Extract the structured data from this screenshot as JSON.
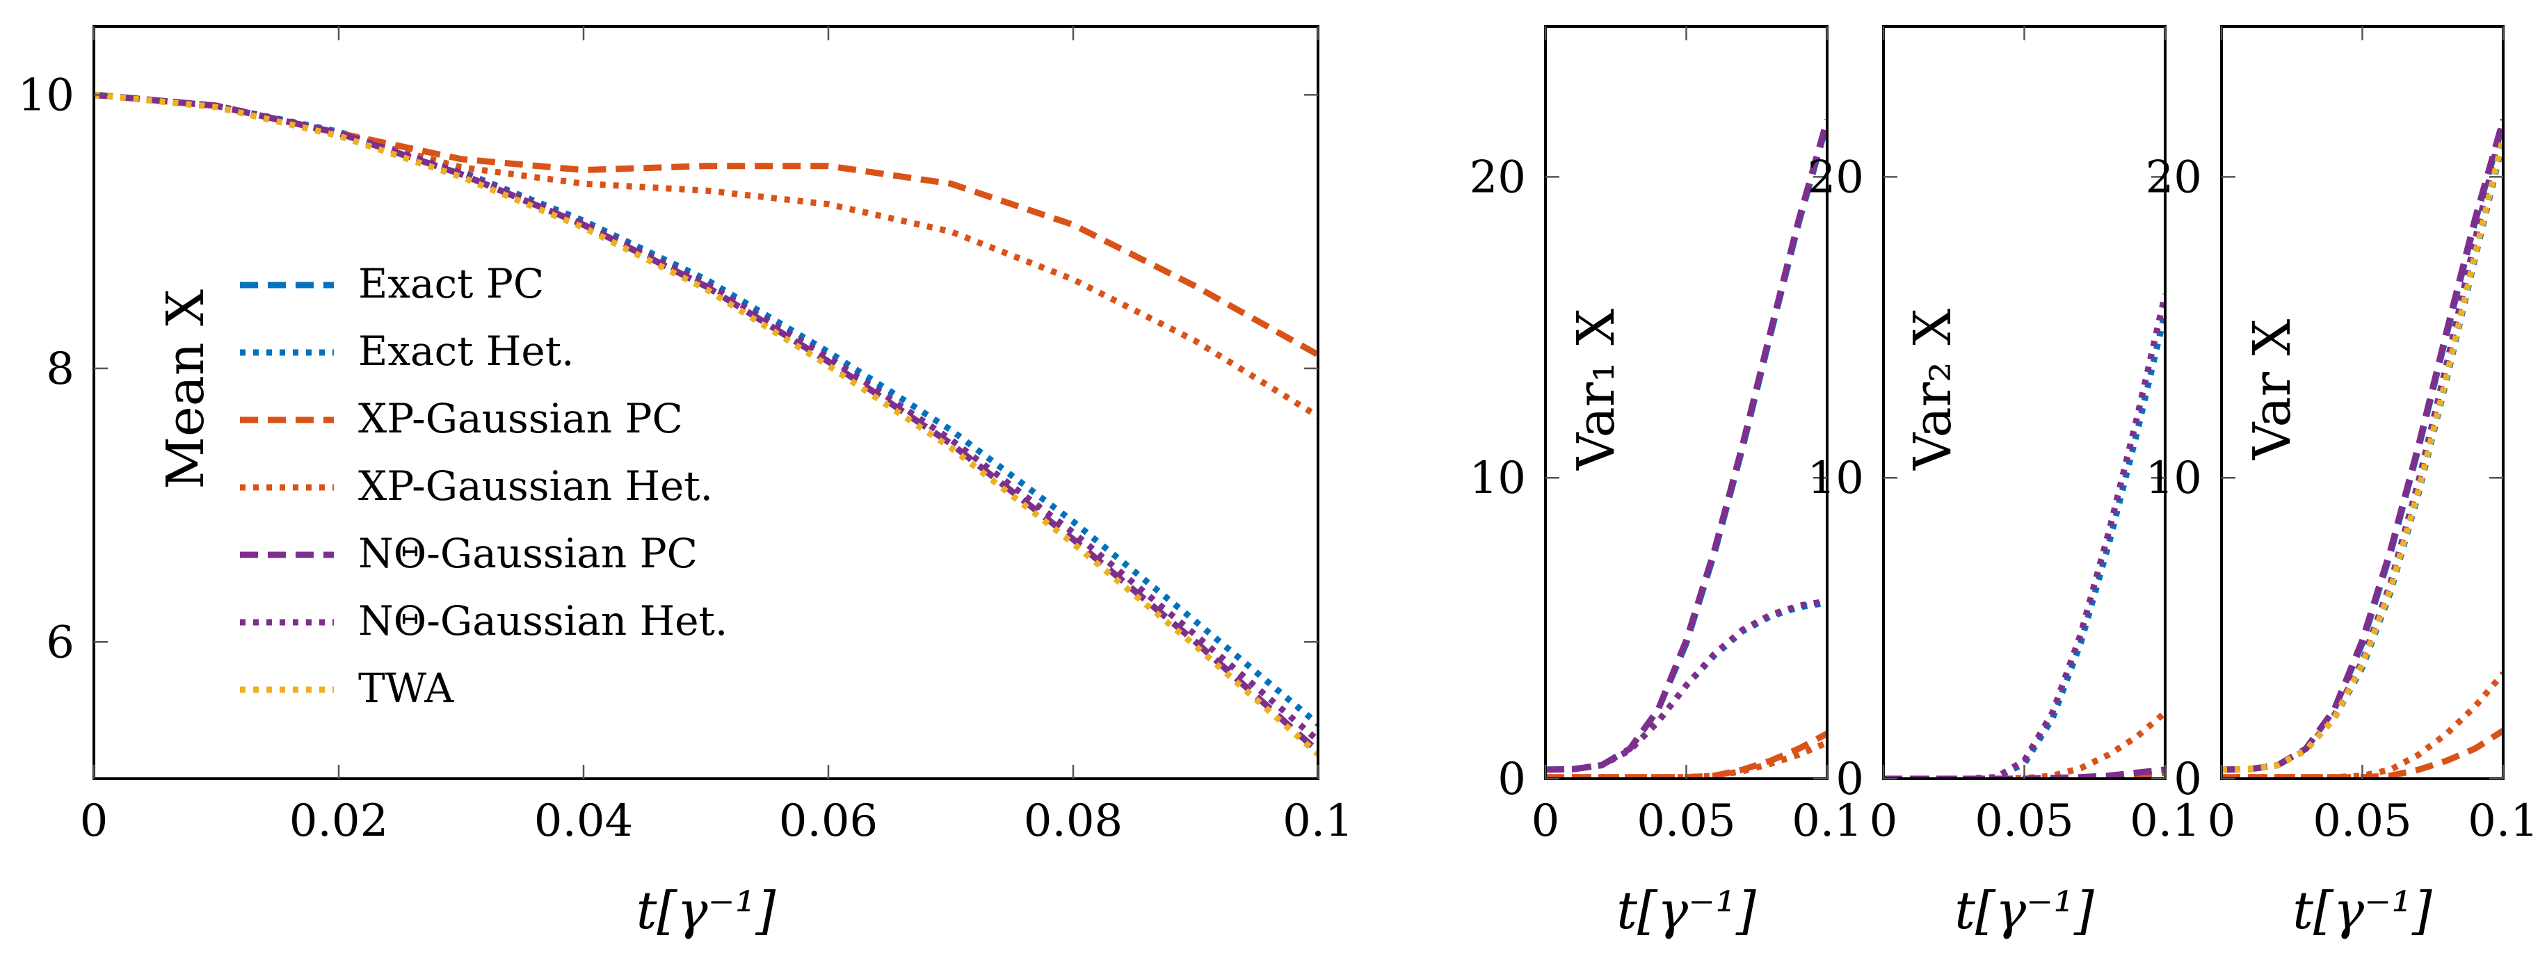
{
  "colors": {
    "exact": "#0072BD",
    "xp": "#D95319",
    "ntheta": "#7E2F8E",
    "twa": "#EDB120"
  },
  "chart_data": [
    {
      "type": "line",
      "panel": "mean",
      "ylabel": "Mean X",
      "xlabel": "t[γ⁻¹]",
      "xlim": [
        0,
        0.1
      ],
      "ylim": [
        5,
        10.5
      ],
      "xticks": [
        "0",
        "0.02",
        "0.04",
        "0.06",
        "0.08",
        "0.1"
      ],
      "xtick_values": [
        0,
        0.02,
        0.04,
        0.06,
        0.08,
        0.1
      ],
      "yticks": [
        "6",
        "8",
        "10"
      ],
      "ytick_values": [
        6,
        8,
        10
      ],
      "grid": false,
      "legend_position": "center-left",
      "legend": [
        {
          "label": "Exact PC",
          "color_key": "exact",
          "dash": "dashed"
        },
        {
          "label": "Exact Het.",
          "color_key": "exact",
          "dash": "dotted"
        },
        {
          "label": "XP-Gaussian PC",
          "color_key": "xp",
          "dash": "dashed"
        },
        {
          "label": "XP-Gaussian Het.",
          "color_key": "xp",
          "dash": "dotted"
        },
        {
          "label": "NΘ-Gaussian PC",
          "color_key": "ntheta",
          "dash": "dashed"
        },
        {
          "label": "NΘ-Gaussian Het.",
          "color_key": "ntheta",
          "dash": "dotted"
        },
        {
          "label": "TWA",
          "color_key": "twa",
          "dash": "dotted"
        }
      ],
      "x": [
        0,
        0.01,
        0.02,
        0.03,
        0.04,
        0.05,
        0.06,
        0.07,
        0.08,
        0.09,
        0.1
      ],
      "series": [
        {
          "name": "Exact PC",
          "color_key": "exact",
          "dash": "dashed",
          "values": [
            10,
            9.92,
            9.72,
            9.42,
            9.05,
            8.6,
            8.05,
            7.45,
            6.75,
            6.0,
            5.2
          ]
        },
        {
          "name": "Exact Het.",
          "color_key": "exact",
          "dash": "dotted",
          "values": [
            10,
            9.92,
            9.73,
            9.44,
            9.08,
            8.65,
            8.12,
            7.55,
            6.88,
            6.15,
            5.4
          ]
        },
        {
          "name": "XP-Gaussian PC",
          "color_key": "xp",
          "dash": "dashed",
          "values": [
            10,
            9.92,
            9.72,
            9.53,
            9.45,
            9.48,
            9.48,
            9.35,
            9.05,
            8.6,
            8.1
          ]
        },
        {
          "name": "XP-Gaussian Het.",
          "color_key": "xp",
          "dash": "dotted",
          "values": [
            10,
            9.92,
            9.71,
            9.47,
            9.35,
            9.3,
            9.2,
            9.0,
            8.65,
            8.2,
            7.65
          ]
        },
        {
          "name": "NΘ-Gaussian PC",
          "color_key": "ntheta",
          "dash": "dashed",
          "values": [
            10,
            9.92,
            9.72,
            9.42,
            9.05,
            8.6,
            8.05,
            7.45,
            6.75,
            6.0,
            5.2
          ]
        },
        {
          "name": "NΘ-Gaussian Het.",
          "color_key": "ntheta",
          "dash": "dotted",
          "values": [
            10,
            9.92,
            9.72,
            9.43,
            9.06,
            8.62,
            8.08,
            7.48,
            6.8,
            6.05,
            5.28
          ]
        },
        {
          "name": "TWA",
          "color_key": "twa",
          "dash": "dotted",
          "values": [
            10,
            9.91,
            9.7,
            9.4,
            9.03,
            8.58,
            8.02,
            7.42,
            6.72,
            5.97,
            5.18
          ]
        }
      ]
    },
    {
      "type": "line",
      "panel": "var1",
      "ylabel": "Var₁ X",
      "xlabel": "t[γ⁻¹]",
      "xlim": [
        0,
        0.1
      ],
      "ylim": [
        0,
        25
      ],
      "xticks": [
        "0",
        "0.05",
        "0.1"
      ],
      "xtick_values": [
        0,
        0.05,
        0.1
      ],
      "yticks": [
        "0",
        "10",
        "20"
      ],
      "ytick_values": [
        0,
        10,
        20
      ],
      "x": [
        0,
        0.01,
        0.02,
        0.03,
        0.04,
        0.05,
        0.06,
        0.07,
        0.08,
        0.09,
        0.1
      ],
      "series": [
        {
          "name": "Exact PC",
          "color_key": "exact",
          "dash": "dashed",
          "values": [
            0.3,
            0.32,
            0.45,
            1.0,
            2.3,
            4.5,
            7.5,
            11.0,
            14.8,
            18.5,
            21.8
          ]
        },
        {
          "name": "Exact Het.",
          "color_key": "exact",
          "dash": "dotted",
          "values": [
            0.3,
            0.32,
            0.45,
            0.95,
            1.9,
            3.1,
            4.1,
            4.9,
            5.4,
            5.7,
            5.85
          ]
        },
        {
          "name": "XP-Gaussian PC",
          "color_key": "xp",
          "dash": "dashed",
          "values": [
            0.05,
            0.05,
            0.05,
            0.05,
            0.05,
            0.05,
            0.1,
            0.3,
            0.6,
            1.0,
            1.5
          ]
        },
        {
          "name": "XP-Gaussian Het.",
          "color_key": "xp",
          "dash": "dotted",
          "values": [
            0.05,
            0.05,
            0.05,
            0.05,
            0.05,
            0.05,
            0.1,
            0.25,
            0.5,
            0.8,
            1.2
          ]
        },
        {
          "name": "NΘ-Gaussian PC",
          "color_key": "ntheta",
          "dash": "dashed",
          "values": [
            0.3,
            0.32,
            0.45,
            1.0,
            2.3,
            4.6,
            7.6,
            11.1,
            14.9,
            18.6,
            21.9
          ]
        },
        {
          "name": "NΘ-Gaussian Het.",
          "color_key": "ntheta",
          "dash": "dotted",
          "values": [
            0.3,
            0.32,
            0.45,
            0.95,
            1.9,
            3.1,
            4.15,
            4.95,
            5.45,
            5.75,
            5.9
          ]
        }
      ]
    },
    {
      "type": "line",
      "panel": "var2",
      "ylabel": "Var₂ X",
      "xlabel": "t[γ⁻¹]",
      "xlim": [
        0,
        0.1
      ],
      "ylim": [
        0,
        25
      ],
      "xticks": [
        "0",
        "0.05",
        "0.1"
      ],
      "xtick_values": [
        0,
        0.05,
        0.1
      ],
      "yticks": [
        "0",
        "10",
        "20"
      ],
      "ytick_values": [
        0,
        10,
        20
      ],
      "x": [
        0,
        0.01,
        0.02,
        0.03,
        0.04,
        0.05,
        0.06,
        0.07,
        0.08,
        0.09,
        0.1
      ],
      "series": [
        {
          "name": "Exact PC",
          "color_key": "exact",
          "dash": "dashed",
          "values": [
            0,
            0,
            0,
            0,
            0,
            0,
            0.02,
            0.05,
            0.1,
            0.2,
            0.3
          ]
        },
        {
          "name": "Exact Het.",
          "color_key": "exact",
          "dash": "dotted",
          "values": [
            0,
            0,
            0,
            0,
            0.05,
            0.5,
            2.0,
            4.5,
            7.8,
            11.5,
            15.5
          ]
        },
        {
          "name": "XP-Gaussian PC",
          "color_key": "xp",
          "dash": "dashed",
          "values": [
            0,
            0,
            0,
            0,
            0,
            0,
            0,
            0.02,
            0.05,
            0.1,
            0.2
          ]
        },
        {
          "name": "XP-Gaussian Het.",
          "color_key": "xp",
          "dash": "dotted",
          "values": [
            0,
            0,
            0,
            0,
            0,
            0.02,
            0.1,
            0.35,
            0.8,
            1.4,
            2.2
          ]
        },
        {
          "name": "NΘ-Gaussian PC",
          "color_key": "ntheta",
          "dash": "dashed",
          "values": [
            0,
            0,
            0,
            0,
            0,
            0,
            0.02,
            0.05,
            0.1,
            0.2,
            0.3
          ]
        },
        {
          "name": "NΘ-Gaussian Het.",
          "color_key": "ntheta",
          "dash": "dotted",
          "values": [
            0,
            0,
            0,
            0,
            0.05,
            0.6,
            2.2,
            4.8,
            8.2,
            12.0,
            16.1
          ]
        }
      ]
    },
    {
      "type": "line",
      "panel": "var",
      "ylabel": "Var X",
      "xlabel": "t[γ⁻¹]",
      "xlim": [
        0,
        0.1
      ],
      "ylim": [
        0,
        25
      ],
      "xticks": [
        "0",
        "0.05",
        "0.1"
      ],
      "xtick_values": [
        0,
        0.05,
        0.1
      ],
      "yticks": [
        "0",
        "10",
        "20"
      ],
      "ytick_values": [
        0,
        10,
        20
      ],
      "x": [
        0,
        0.01,
        0.02,
        0.03,
        0.04,
        0.05,
        0.06,
        0.07,
        0.08,
        0.09,
        0.1
      ],
      "series": [
        {
          "name": "Exact PC",
          "color_key": "exact",
          "dash": "dashed",
          "values": [
            0.3,
            0.32,
            0.45,
            1.0,
            2.3,
            4.5,
            7.5,
            11.0,
            14.8,
            18.5,
            21.8
          ]
        },
        {
          "name": "Exact Het.",
          "color_key": "exact",
          "dash": "dotted",
          "values": [
            0.3,
            0.32,
            0.45,
            0.95,
            2.0,
            3.7,
            6.2,
            9.5,
            13.3,
            17.3,
            21.2
          ]
        },
        {
          "name": "XP-Gaussian PC",
          "color_key": "xp",
          "dash": "dashed",
          "values": [
            0.05,
            0.05,
            0.05,
            0.05,
            0.05,
            0.05,
            0.1,
            0.3,
            0.6,
            1.0,
            1.6
          ]
        },
        {
          "name": "XP-Gaussian Het.",
          "color_key": "xp",
          "dash": "dotted",
          "values": [
            0.05,
            0.05,
            0.05,
            0.05,
            0.05,
            0.1,
            0.3,
            0.8,
            1.5,
            2.4,
            3.5
          ]
        },
        {
          "name": "NΘ-Gaussian PC",
          "color_key": "ntheta",
          "dash": "dashed",
          "values": [
            0.3,
            0.32,
            0.45,
            1.0,
            2.3,
            4.6,
            7.6,
            11.1,
            14.9,
            18.6,
            21.9
          ]
        },
        {
          "name": "NΘ-Gaussian Het.",
          "color_key": "ntheta",
          "dash": "dotted",
          "values": [
            0.3,
            0.32,
            0.45,
            0.95,
            2.1,
            3.9,
            6.5,
            9.9,
            13.8,
            17.9,
            21.9
          ]
        },
        {
          "name": "TWA",
          "color_key": "twa",
          "dash": "dotted",
          "values": [
            0.3,
            0.32,
            0.45,
            0.95,
            2.0,
            3.8,
            6.3,
            9.6,
            13.4,
            17.4,
            21.3
          ]
        }
      ]
    }
  ]
}
